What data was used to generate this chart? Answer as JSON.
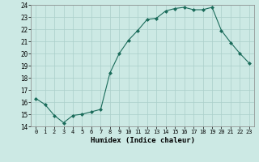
{
  "x": [
    0,
    1,
    2,
    3,
    4,
    5,
    6,
    7,
    8,
    9,
    10,
    11,
    12,
    13,
    14,
    15,
    16,
    17,
    18,
    19,
    20,
    21,
    22,
    23
  ],
  "y": [
    16.3,
    15.8,
    14.9,
    14.3,
    14.9,
    15.0,
    15.2,
    15.4,
    18.4,
    20.0,
    21.1,
    21.9,
    22.8,
    22.9,
    23.5,
    23.7,
    23.8,
    23.6,
    23.6,
    23.8,
    21.9,
    20.9,
    20.0,
    19.2
  ],
  "line_color": "#1a6b5a",
  "marker": "D",
  "marker_size": 2.0,
  "bg_color": "#cce9e4",
  "grid_color": "#aacfca",
  "xlabel": "Humidex (Indice chaleur)",
  "ylim": [
    14,
    24
  ],
  "xlim": [
    -0.5,
    23.5
  ],
  "yticks": [
    14,
    15,
    16,
    17,
    18,
    19,
    20,
    21,
    22,
    23,
    24
  ],
  "xticks": [
    0,
    1,
    2,
    3,
    4,
    5,
    6,
    7,
    8,
    9,
    10,
    11,
    12,
    13,
    14,
    15,
    16,
    17,
    18,
    19,
    20,
    21,
    22,
    23
  ]
}
